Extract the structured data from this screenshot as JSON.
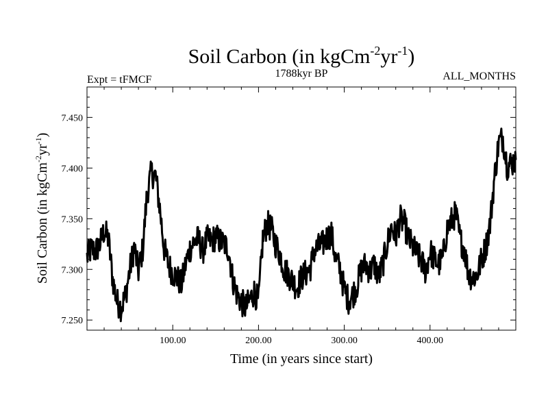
{
  "chart_data": {
    "type": "line",
    "title_main": "Soil Carbon (in kgCm",
    "title_sup1": "-2",
    "title_mid": "yr",
    "title_sup2": "-1",
    "title_end": ")",
    "subtitle_left": "Expt = tFMCF",
    "subtitle_center": "1788kyr BP",
    "subtitle_right": "ALL_MONTHS",
    "xlabel": "Time (in years since start)",
    "ylabel_main": "Soil Carbon (in kgCm",
    "ylabel_sup1": "-2",
    "ylabel_mid": "yr",
    "ylabel_sup2": "-1",
    "ylabel_end": ")",
    "xlim": [
      0,
      500
    ],
    "ylim": [
      7.24,
      7.48
    ],
    "xticks": [
      100,
      200,
      300,
      400
    ],
    "xtick_labels": [
      "100.00",
      "200.00",
      "300.00",
      "400.00"
    ],
    "yticks": [
      7.25,
      7.3,
      7.35,
      7.4,
      7.45
    ],
    "ytick_labels": [
      "7.250",
      "7.300",
      "7.350",
      "7.400",
      "7.450"
    ],
    "grid": false,
    "series": [
      {
        "name": "Soil Carbon",
        "x_step": 5,
        "x_start": 0,
        "values": [
          7.312,
          7.32,
          7.318,
          7.325,
          7.338,
          7.33,
          7.29,
          7.268,
          7.262,
          7.275,
          7.3,
          7.322,
          7.298,
          7.32,
          7.375,
          7.395,
          7.392,
          7.36,
          7.32,
          7.305,
          7.296,
          7.292,
          7.285,
          7.305,
          7.32,
          7.328,
          7.33,
          7.318,
          7.33,
          7.328,
          7.332,
          7.328,
          7.325,
          7.32,
          7.29,
          7.275,
          7.268,
          7.262,
          7.27,
          7.278,
          7.268,
          7.33,
          7.345,
          7.34,
          7.325,
          7.315,
          7.3,
          7.295,
          7.288,
          7.282,
          7.292,
          7.296,
          7.3,
          7.318,
          7.322,
          7.325,
          7.332,
          7.335,
          7.31,
          7.3,
          7.28,
          7.27,
          7.275,
          7.285,
          7.3,
          7.305,
          7.298,
          7.305,
          7.292,
          7.305,
          7.325,
          7.342,
          7.332,
          7.35,
          7.345,
          7.33,
          7.322,
          7.315,
          7.308,
          7.298,
          7.318,
          7.31,
          7.305,
          7.312,
          7.34,
          7.348,
          7.355,
          7.33,
          7.32,
          7.295,
          7.292,
          7.295,
          7.31,
          7.322,
          7.345,
          7.39,
          7.425,
          7.43,
          7.402,
          7.405,
          7.408
        ]
      }
    ]
  }
}
